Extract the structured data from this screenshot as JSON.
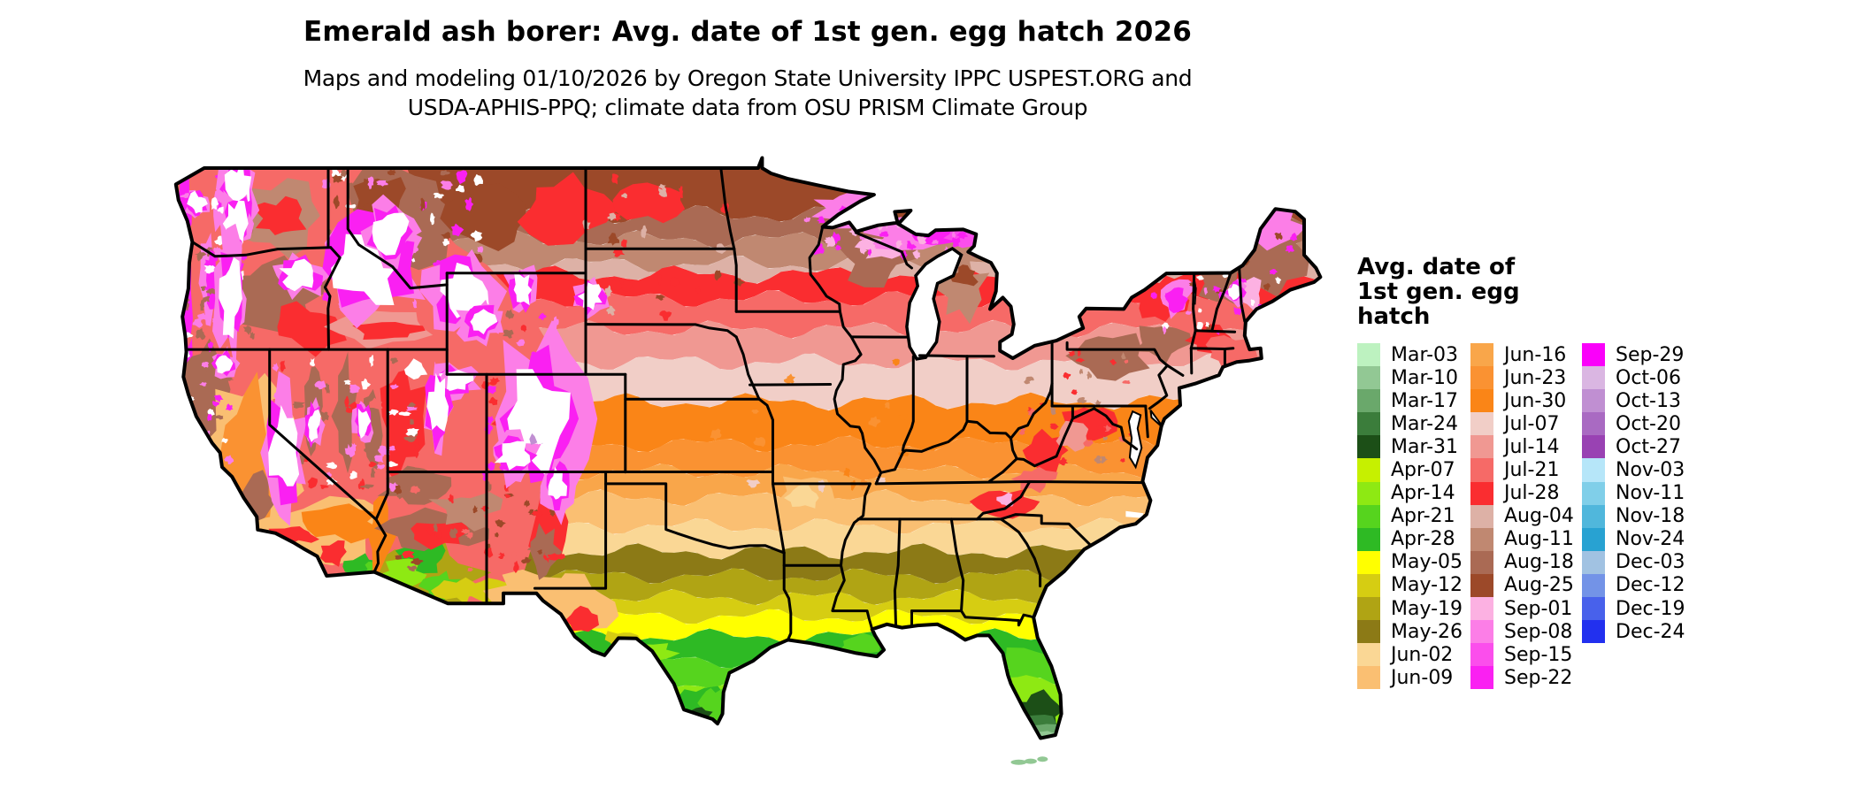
{
  "page": {
    "background": "#ffffff"
  },
  "title": "Emerald ash borer: Avg. date of 1st gen. egg hatch 2026",
  "subtitle": {
    "line1": "Maps and modeling 01/10/2026 by Oregon State University IPPC USPEST.ORG and",
    "line2": "USDA-APHIS-PPQ; climate data from OSU PRISM Climate Group"
  },
  "map": {
    "region": "Continental United States",
    "border_color": "#000000",
    "water_and_no_data_color": "#ffffff"
  },
  "legend": {
    "title_lines": [
      "Avg. date of",
      "1st gen. egg",
      "hatch"
    ],
    "columns": [
      [
        {
          "label": "Mar-03",
          "color": "#bdf2c0"
        },
        {
          "label": "Mar-10",
          "color": "#92c894"
        },
        {
          "label": "Mar-17",
          "color": "#6aa86b"
        },
        {
          "label": "Mar-24",
          "color": "#3b7d3b"
        },
        {
          "label": "Mar-31",
          "color": "#1c4f17"
        },
        {
          "label": "Apr-07",
          "color": "#c6f000"
        },
        {
          "label": "Apr-14",
          "color": "#8ee913"
        },
        {
          "label": "Apr-21",
          "color": "#56d41e"
        },
        {
          "label": "Apr-28",
          "color": "#2eba24"
        },
        {
          "label": "May-05",
          "color": "#ffff00"
        },
        {
          "label": "May-12",
          "color": "#d6cd12"
        },
        {
          "label": "May-19",
          "color": "#b0a414"
        },
        {
          "label": "May-26",
          "color": "#8c7a16"
        },
        {
          "label": "Jun-02",
          "color": "#fad795"
        },
        {
          "label": "Jun-09",
          "color": "#fabf72"
        }
      ],
      [
        {
          "label": "Jun-16",
          "color": "#f9a64a"
        },
        {
          "label": "Jun-23",
          "color": "#fa9232"
        },
        {
          "label": "Jun-30",
          "color": "#fa8517"
        },
        {
          "label": "Jul-07",
          "color": "#f1cec7"
        },
        {
          "label": "Jul-14",
          "color": "#f09892"
        },
        {
          "label": "Jul-21",
          "color": "#f66a67"
        },
        {
          "label": "Jul-28",
          "color": "#fa2d30"
        },
        {
          "label": "Aug-04",
          "color": "#ddb1a6"
        },
        {
          "label": "Aug-11",
          "color": "#c08871"
        },
        {
          "label": "Aug-18",
          "color": "#aa6a54"
        },
        {
          "label": "Aug-25",
          "color": "#9c4929"
        },
        {
          "label": "Sep-01",
          "color": "#fcb1e2"
        },
        {
          "label": "Sep-08",
          "color": "#fc7ee7"
        },
        {
          "label": "Sep-15",
          "color": "#fb4eec"
        },
        {
          "label": "Sep-22",
          "color": "#fa20f2"
        }
      ],
      [
        {
          "label": "Sep-29",
          "color": "#fa00fa"
        },
        {
          "label": "Oct-06",
          "color": "#dab6e2"
        },
        {
          "label": "Oct-13",
          "color": "#c08fd2"
        },
        {
          "label": "Oct-20",
          "color": "#a96ac2"
        },
        {
          "label": "Oct-27",
          "color": "#9942b3"
        },
        {
          "label": "Nov-03",
          "color": "#b6e6f9"
        },
        {
          "label": "Nov-11",
          "color": "#80cfe9"
        },
        {
          "label": "Nov-18",
          "color": "#50b7dc"
        },
        {
          "label": "Nov-24",
          "color": "#28a2d2"
        },
        {
          "label": "Dec-03",
          "color": "#a1c2e2"
        },
        {
          "label": "Dec-12",
          "color": "#7393e7"
        },
        {
          "label": "Dec-19",
          "color": "#4861eb"
        },
        {
          "label": "Dec-24",
          "color": "#2230ef"
        }
      ]
    ]
  }
}
